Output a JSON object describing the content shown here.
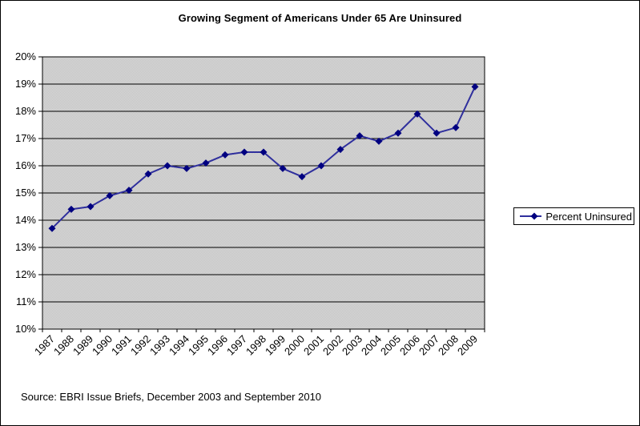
{
  "chart_data": {
    "type": "line",
    "title": "Growing Segment of Americans Under 65 Are Uninsured",
    "categories": [
      "1987",
      "1988",
      "1989",
      "1990",
      "1991",
      "1992",
      "1993",
      "1994",
      "1995",
      "1996",
      "1997",
      "1998",
      "1999",
      "2000",
      "2001",
      "2002",
      "2003",
      "2004",
      "2005",
      "2006",
      "2007",
      "2008",
      "2009"
    ],
    "series": [
      {
        "name": "Percent Uninsured",
        "values": [
          13.7,
          14.4,
          14.5,
          14.9,
          15.1,
          15.7,
          16.0,
          15.9,
          16.1,
          16.4,
          16.5,
          16.5,
          15.9,
          15.6,
          16.0,
          16.6,
          17.1,
          16.9,
          17.2,
          17.9,
          17.2,
          17.4,
          18.9
        ],
        "line_color": "#2f2f9d",
        "marker_color": "#000080",
        "marker_shape": "diamond"
      }
    ],
    "xlabel": "",
    "ylabel": "",
    "ylim": [
      10,
      20
    ],
    "y_tick_values": [
      10,
      11,
      12,
      13,
      14,
      15,
      16,
      17,
      18,
      19,
      20
    ],
    "y_tick_labels": [
      "10%",
      "11%",
      "12%",
      "13%",
      "14%",
      "15%",
      "16%",
      "17%",
      "18%",
      "19%",
      "20%"
    ],
    "grid": "horizontal",
    "grid_color": "#000000",
    "plot_bg_colors": [
      "#c2c2c2",
      "#dadada"
    ],
    "legend_position": "right"
  },
  "source": {
    "text": "Source: EBRI Issue Briefs, December 2003 and September 2010"
  }
}
